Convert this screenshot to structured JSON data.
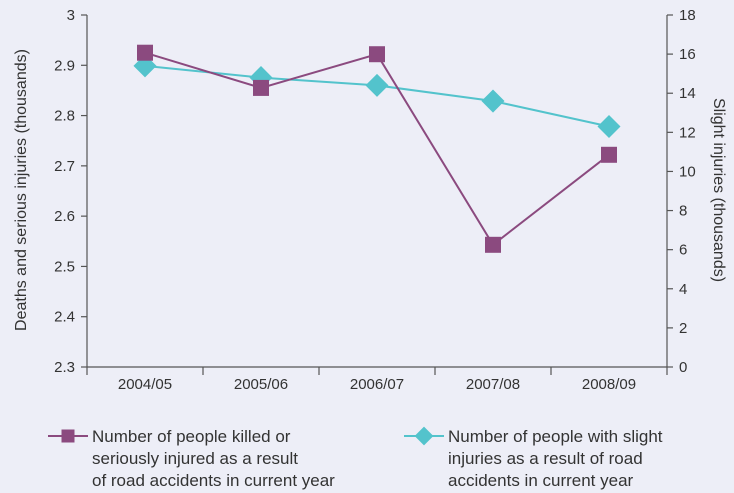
{
  "chart_data": {
    "type": "line",
    "categories": [
      "2004/05",
      "2005/06",
      "2006/07",
      "2007/08",
      "2008/09"
    ],
    "left_axis": {
      "label": "Deaths and serious injuries (thousands)",
      "ylim": [
        2.3,
        3.0
      ],
      "ticks": [
        "2.3",
        "2.4",
        "2.5",
        "2.6",
        "2.7",
        "2.8",
        "2.9",
        "3"
      ]
    },
    "right_axis": {
      "label": "Slight injuries (thousands)",
      "ylim": [
        0,
        18
      ],
      "ticks": [
        "0",
        "2",
        "4",
        "6",
        "8",
        "10",
        "12",
        "14",
        "16",
        "18"
      ]
    },
    "series": [
      {
        "name": "Number of people killed or seriously injured as a result of road accidents in current year",
        "name_lines": [
          "Number of people killed or",
          "seriously injured as a result",
          "of road accidents in current year"
        ],
        "axis": "left",
        "marker": "square",
        "color": "#8b4a7f",
        "values": [
          2.925,
          2.855,
          2.922,
          2.543,
          2.722
        ]
      },
      {
        "name": "Number of people with slight injuries as a result of road accidents in current year",
        "name_lines": [
          "Number of people with slight",
          "injuries as a result of road",
          "accidents in current year"
        ],
        "axis": "right",
        "marker": "diamond",
        "color": "#53c3cc",
        "values": [
          15.4,
          14.8,
          14.4,
          13.6,
          12.3
        ]
      }
    ],
    "grid": false,
    "legend_placement": "bottom"
  }
}
